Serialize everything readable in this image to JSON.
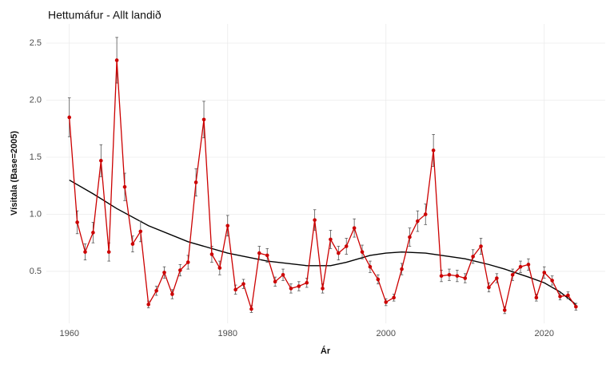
{
  "chart_data": {
    "type": "line",
    "title": "Hettumáfur - Allt landið",
    "xlabel": "Ár",
    "ylabel": "Vísitala (Base=2005)",
    "x": [
      1960,
      1961,
      1962,
      1963,
      1964,
      1965,
      1966,
      1967,
      1968,
      1969,
      1970,
      1971,
      1972,
      1973,
      1974,
      1975,
      1976,
      1977,
      1978,
      1979,
      1980,
      1981,
      1982,
      1983,
      1984,
      1985,
      1986,
      1987,
      1988,
      1989,
      1990,
      1991,
      1992,
      1993,
      1994,
      1995,
      1996,
      1997,
      1998,
      1999,
      2000,
      2001,
      2002,
      2003,
      2004,
      2005,
      2006,
      2007,
      2008,
      2009,
      2010,
      2011,
      2012,
      2013,
      2014,
      2015,
      2016,
      2017,
      2018,
      2019,
      2020,
      2021,
      2022,
      2023,
      2024
    ],
    "values": [
      1.85,
      0.93,
      0.67,
      0.84,
      1.47,
      0.67,
      2.35,
      1.24,
      0.74,
      0.85,
      0.21,
      0.33,
      0.49,
      0.3,
      0.51,
      0.58,
      1.28,
      1.83,
      0.65,
      0.53,
      0.9,
      0.34,
      0.39,
      0.17,
      0.66,
      0.64,
      0.41,
      0.47,
      0.35,
      0.37,
      0.4,
      0.95,
      0.35,
      0.78,
      0.66,
      0.72,
      0.88,
      0.67,
      0.54,
      0.43,
      0.23,
      0.27,
      0.52,
      0.8,
      0.94,
      1.0,
      1.56,
      0.46,
      0.47,
      0.46,
      0.44,
      0.63,
      0.72,
      0.36,
      0.44,
      0.16,
      0.47,
      0.54,
      0.56,
      0.27,
      0.49,
      0.42,
      0.28,
      0.29,
      0.19
    ],
    "errors": [
      0.17,
      0.1,
      0.07,
      0.09,
      0.14,
      0.08,
      0.2,
      0.12,
      0.07,
      0.09,
      0.03,
      0.04,
      0.05,
      0.04,
      0.05,
      0.06,
      0.12,
      0.16,
      0.07,
      0.06,
      0.09,
      0.04,
      0.04,
      0.03,
      0.06,
      0.06,
      0.04,
      0.05,
      0.04,
      0.04,
      0.04,
      0.09,
      0.04,
      0.08,
      0.06,
      0.07,
      0.08,
      0.06,
      0.05,
      0.04,
      0.03,
      0.03,
      0.05,
      0.08,
      0.09,
      0.09,
      0.14,
      0.05,
      0.05,
      0.05,
      0.04,
      0.06,
      0.07,
      0.04,
      0.04,
      0.03,
      0.05,
      0.05,
      0.05,
      0.03,
      0.05,
      0.04,
      0.03,
      0.03,
      0.03
    ],
    "color": "#cc0000",
    "trend": {
      "x": [
        1960,
        1963,
        1966,
        1970,
        1975,
        1980,
        1985,
        1990,
        1993,
        1995,
        1998,
        2000,
        2002,
        2005,
        2008,
        2010,
        2013,
        2015,
        2018,
        2020,
        2022,
        2024
      ],
      "values": [
        1.3,
        1.18,
        1.05,
        0.9,
        0.76,
        0.66,
        0.59,
        0.55,
        0.55,
        0.58,
        0.64,
        0.66,
        0.67,
        0.66,
        0.63,
        0.61,
        0.56,
        0.52,
        0.45,
        0.4,
        0.32,
        0.21
      ],
      "color": "#000000"
    },
    "xlim": [
      1957.1,
      2027.7
    ],
    "xticks": [
      1960,
      1980,
      2000,
      2020
    ],
    "ylim": [
      0.045,
      2.668
    ],
    "yticks": [
      0.5,
      {
        "value": 1.0,
        "label": "1.0"
      },
      1.5,
      {
        "value": 2.0,
        "label": "2.0"
      },
      2.5
    ],
    "grid": true
  }
}
